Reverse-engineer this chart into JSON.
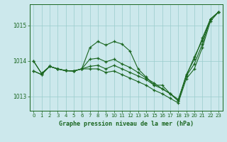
{
  "xlabel": "Graphe pression niveau de la mer (hPa)",
  "background_color": "#cce8ec",
  "grid_color": "#99cccc",
  "line_color": "#1a6620",
  "xlim": [
    -0.5,
    23.5
  ],
  "ylim": [
    1012.6,
    1015.6
  ],
  "yticks": [
    1013,
    1014,
    1015
  ],
  "xticks": [
    0,
    1,
    2,
    3,
    4,
    5,
    6,
    7,
    8,
    9,
    10,
    11,
    12,
    13,
    14,
    15,
    16,
    17,
    18,
    19,
    20,
    21,
    22,
    23
  ],
  "series": [
    [
      1014.0,
      1013.65,
      1013.85,
      1013.78,
      1013.73,
      1013.72,
      1013.78,
      1014.38,
      1014.55,
      1014.45,
      1014.55,
      1014.48,
      1014.28,
      1013.78,
      1013.55,
      1013.32,
      1013.32,
      1013.08,
      1012.88,
      1013.62,
      1014.05,
      1014.65,
      1015.18,
      1015.38
    ],
    [
      1014.0,
      1013.65,
      1013.85,
      1013.78,
      1013.73,
      1013.72,
      1013.78,
      1014.05,
      1014.08,
      1013.98,
      1014.05,
      1013.92,
      1013.82,
      1013.68,
      1013.52,
      1013.38,
      1013.22,
      1013.08,
      1012.92,
      1013.58,
      1014.12,
      1014.58,
      1015.18,
      1015.38
    ],
    [
      1013.72,
      1013.62,
      1013.85,
      1013.78,
      1013.73,
      1013.72,
      1013.78,
      1013.85,
      1013.88,
      1013.78,
      1013.88,
      1013.78,
      1013.68,
      1013.58,
      1013.48,
      1013.32,
      1013.22,
      1013.08,
      1012.88,
      1013.58,
      1013.92,
      1014.48,
      1015.18,
      1015.38
    ],
    [
      1013.72,
      1013.62,
      1013.85,
      1013.78,
      1013.73,
      1013.72,
      1013.78,
      1013.78,
      1013.78,
      1013.68,
      1013.72,
      1013.62,
      1013.52,
      1013.42,
      1013.32,
      1013.18,
      1013.08,
      1012.95,
      1012.82,
      1013.5,
      1013.78,
      1014.38,
      1015.12,
      1015.38
    ]
  ]
}
